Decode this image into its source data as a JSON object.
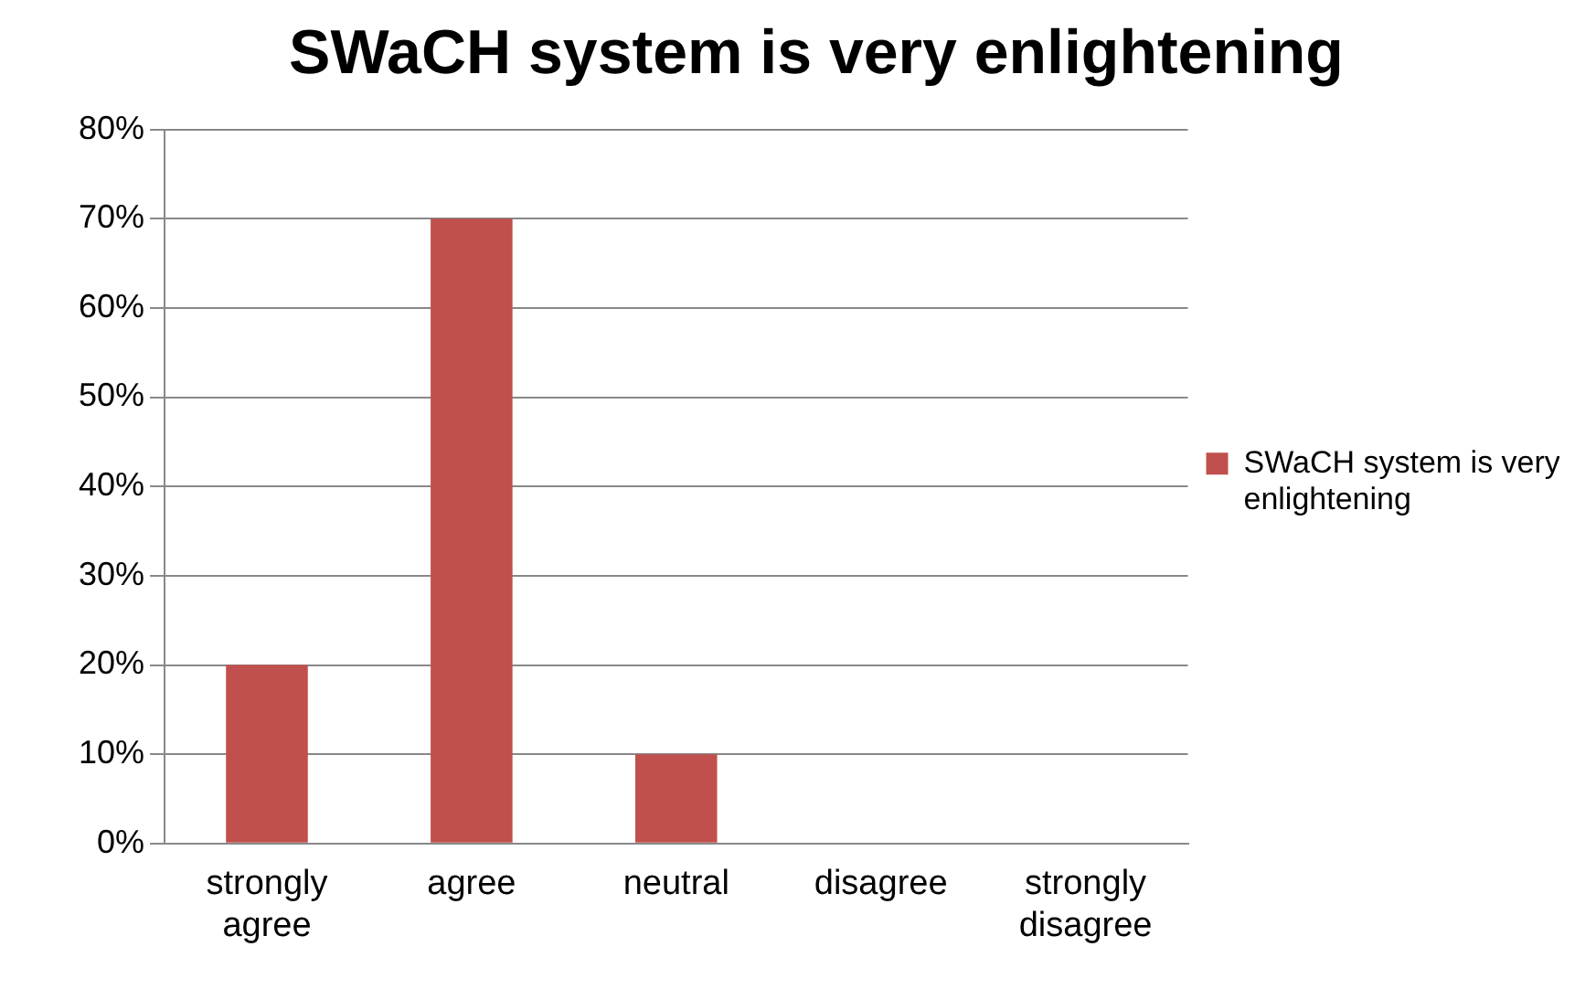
{
  "chart_data": {
    "type": "bar",
    "title": "SWaCH system is very enlightening",
    "categories": [
      "strongly agree",
      "agree",
      "neutral",
      "disagree",
      "strongly disagree"
    ],
    "series": [
      {
        "name": "SWaCH system is very enlightening",
        "color": "#c0504d",
        "values": [
          20,
          70,
          10,
          0,
          0
        ]
      }
    ],
    "ylim": [
      0,
      80
    ],
    "yticks": [
      {
        "value": 0,
        "label": "0%"
      },
      {
        "value": 10,
        "label": "10%"
      },
      {
        "value": 20,
        "label": "20%"
      },
      {
        "value": 30,
        "label": "30%"
      },
      {
        "value": 40,
        "label": "40%"
      },
      {
        "value": 50,
        "label": "50%"
      },
      {
        "value": 60,
        "label": "60%"
      },
      {
        "value": 70,
        "label": "70%"
      },
      {
        "value": 80,
        "label": "80%"
      }
    ],
    "grid": "y",
    "legend": "right"
  }
}
